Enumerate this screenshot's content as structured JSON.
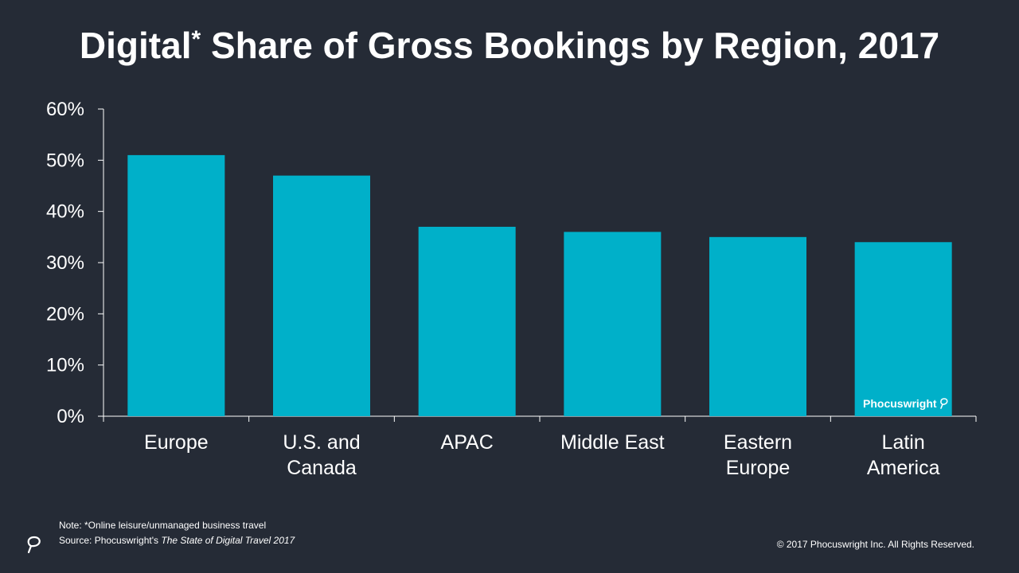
{
  "title": {
    "main": "Digital",
    "asterisk": "*",
    "rest": " Share of Gross Bookings by Region, 2017"
  },
  "chart_data": {
    "type": "bar",
    "categories": [
      [
        "Europe"
      ],
      [
        "U.S. and",
        "Canada"
      ],
      [
        "APAC"
      ],
      [
        "Middle East"
      ],
      [
        "Eastern",
        "Europe"
      ],
      [
        "Latin",
        "America"
      ]
    ],
    "values": [
      51,
      47,
      37,
      36,
      35,
      34
    ],
    "ylim": [
      0,
      60
    ],
    "yticks": [
      0,
      10,
      20,
      30,
      40,
      50,
      60
    ],
    "ytick_labels": [
      "0%",
      "10%",
      "20%",
      "30%",
      "40%",
      "50%",
      "60%"
    ],
    "bar_color": "#00b0c9",
    "grid": false,
    "xlabel": "",
    "ylabel": ""
  },
  "watermark": "Phocuswright",
  "footer": {
    "note": "Note: *Online leisure/unmanaged  business  travel",
    "source_prefix": "Source: Phocuswright's ",
    "source_title": "The State of Digital Travel 2017",
    "copyright": "© 2017 Phocuswright  Inc. All Rights Reserved."
  },
  "colors": {
    "background": "#252b36",
    "accent": "#00b0c9",
    "axis": "#ffffff"
  }
}
